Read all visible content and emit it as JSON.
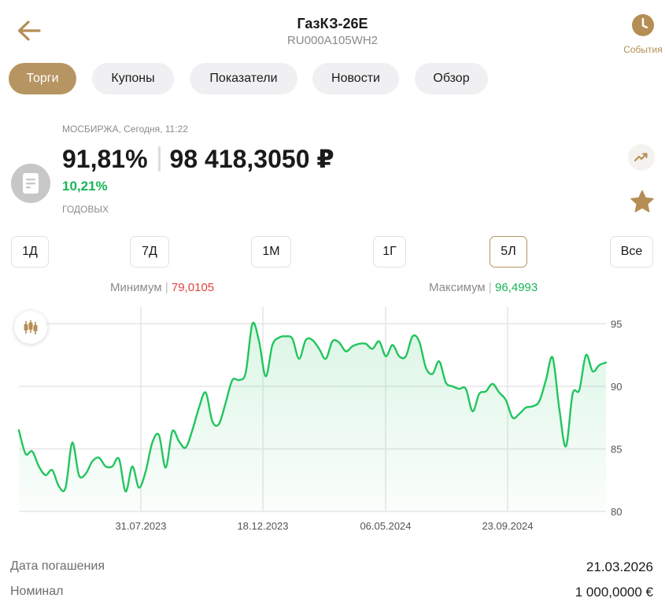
{
  "header": {
    "title": "ГазКЗ-26Е",
    "isin": "RU000A105WH2",
    "events_label": "События"
  },
  "tabs": [
    {
      "label": "Торги",
      "active": true
    },
    {
      "label": "Купоны",
      "active": false
    },
    {
      "label": "Показатели",
      "active": false
    },
    {
      "label": "Новости",
      "active": false
    },
    {
      "label": "Обзор",
      "active": false
    }
  ],
  "quote": {
    "exchange_time": "МОСБИРЖА, Сегодня, 11:22",
    "price_percent": "91,81%",
    "price_value": "98 418,3050 ₽",
    "yield": "10,21%",
    "yield_label": "ГОДОВЫХ"
  },
  "periods": [
    {
      "label": "1Д",
      "active": false
    },
    {
      "label": "7Д",
      "active": false
    },
    {
      "label": "1М",
      "active": false
    },
    {
      "label": "1Г",
      "active": false
    },
    {
      "label": "5Л",
      "active": true
    },
    {
      "label": "Все",
      "active": false
    }
  ],
  "stats": {
    "min_label": "Минимум",
    "min_value": "79,0105",
    "max_label": "Максимум",
    "max_value": "96,4993"
  },
  "colors": {
    "accent": "#b79562",
    "line": "#22c55e",
    "up": "#16b657",
    "down": "#e0443e"
  },
  "chart_data": {
    "type": "area",
    "x_ticks": [
      "31.07.2023",
      "18.12.2023",
      "06.05.2024",
      "23.09.2024"
    ],
    "y_ticks": [
      80,
      85,
      90,
      95
    ],
    "ylim": [
      80,
      95.5
    ],
    "grid": true,
    "series": [
      {
        "values": [
          86.5,
          84.6,
          84.8,
          83.6,
          82.9,
          83.3,
          82.0,
          81.9,
          85.5,
          82.9,
          83.0,
          84.0,
          84.3,
          83.6,
          83.6,
          84.2,
          81.6,
          83.6,
          81.9,
          83.2,
          85.5,
          86.1,
          83.5,
          86.4,
          85.6,
          85.1,
          86.5,
          88.3,
          89.5,
          87.2,
          87.0,
          88.7,
          90.5,
          90.5,
          91.1,
          95.0,
          93.6,
          90.8,
          93.3,
          93.9,
          94.0,
          93.8,
          92.2,
          93.7,
          93.7,
          93.0,
          92.2,
          93.6,
          93.5,
          92.8,
          93.2,
          93.4,
          93.4,
          93.0,
          93.6,
          92.4,
          93.3,
          92.4,
          92.4,
          94.0,
          93.6,
          91.5,
          91.0,
          92.0,
          90.3,
          90.0,
          89.8,
          89.8,
          88.0,
          89.4,
          89.6,
          90.2,
          89.5,
          88.9,
          87.5,
          87.8,
          88.3,
          88.4,
          88.8,
          90.5,
          92.3,
          88.2,
          85.2,
          89.4,
          89.7,
          92.5,
          91.2,
          91.7,
          91.9
        ]
      }
    ]
  },
  "info": [
    {
      "label": "Дата погашения",
      "value": "21.03.2026"
    },
    {
      "label": "Номинал",
      "value": "1 000,0000 €"
    }
  ]
}
